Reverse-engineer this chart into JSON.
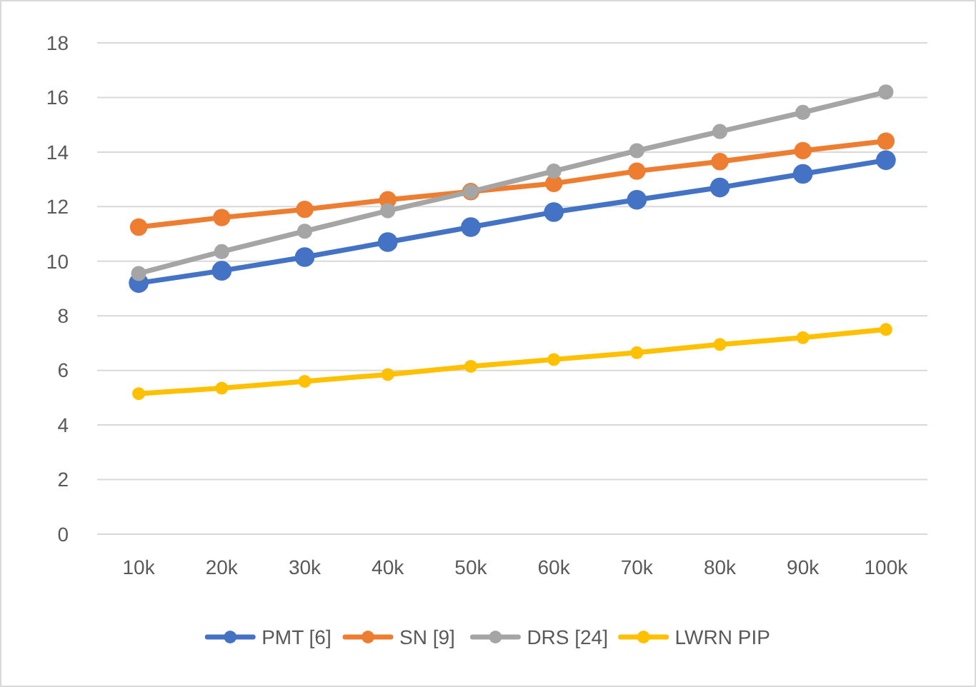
{
  "chart_data": {
    "type": "line",
    "categories": [
      "10k",
      "20k",
      "30k",
      "40k",
      "50k",
      "60k",
      "70k",
      "80k",
      "90k",
      "100k"
    ],
    "series": [
      {
        "name": "PMT [6]",
        "color": "#4472c4",
        "values": [
          9.2,
          9.65,
          10.15,
          10.7,
          11.25,
          11.8,
          12.25,
          12.7,
          13.2,
          13.7
        ]
      },
      {
        "name": "SN [9]",
        "color": "#ed7d31",
        "values": [
          11.25,
          11.6,
          11.9,
          12.25,
          12.55,
          12.85,
          13.3,
          13.65,
          14.05,
          14.4
        ]
      },
      {
        "name": "DRS [24]",
        "color": "#a5a5a5",
        "values": [
          9.55,
          10.35,
          11.1,
          11.85,
          12.55,
          13.3,
          14.05,
          14.75,
          15.45,
          16.2
        ]
      },
      {
        "name": "LWRN PIP",
        "color": "#ffc000",
        "values": [
          5.15,
          5.35,
          5.6,
          5.85,
          6.15,
          6.4,
          6.65,
          6.95,
          7.2,
          7.5
        ]
      }
    ],
    "ylim": [
      0,
      18
    ],
    "yticks": [
      0,
      2,
      4,
      6,
      8,
      10,
      12,
      14,
      16,
      18
    ],
    "grid": "y",
    "legend": "bottom",
    "marker": "circle",
    "line_style": "solid"
  }
}
